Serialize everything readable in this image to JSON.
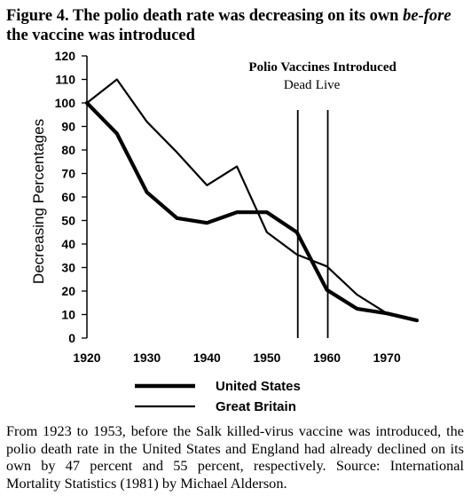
{
  "figure": {
    "title_part1": "Figure 4. The polio death rate was decreasing on its own ",
    "title_em": "be-fore",
    "title_part2": " the vaccine was introduced",
    "caption": "From 1923 to 1953, before the Salk killed-virus vaccine was introduced, the polio death rate in the United States and England had already declined on its own by 47 percent and 55 percent, respectively. Source: International Mortality Statistics (1981) by Michael Alderson."
  },
  "chart_data": {
    "type": "line",
    "title": "",
    "xlabel": "",
    "ylabel": "Decreasing Percentages",
    "xlim": [
      1920,
      1975
    ],
    "ylim": [
      0,
      120
    ],
    "x_ticks": [
      1920,
      1930,
      1940,
      1950,
      1960,
      1970
    ],
    "y_ticks": [
      0,
      10,
      20,
      30,
      40,
      50,
      60,
      70,
      80,
      90,
      100,
      110,
      120
    ],
    "grid": false,
    "legend_position": "bottom",
    "series": [
      {
        "name": "United States",
        "style": "thick",
        "x": [
          1920,
          1925,
          1930,
          1935,
          1940,
          1945,
          1950,
          1955,
          1960,
          1965,
          1970,
          1975
        ],
        "y": [
          100,
          87,
          62,
          51,
          49,
          53.5,
          53.5,
          45,
          20.5,
          12.5,
          10.5,
          7.5
        ]
      },
      {
        "name": "Great Britain",
        "style": "thin",
        "x": [
          1920,
          1925,
          1930,
          1935,
          1940,
          1945,
          1950,
          1955,
          1960,
          1965,
          1970,
          1975
        ],
        "y": [
          100,
          110,
          92,
          79,
          65,
          73,
          45,
          35.5,
          30.5,
          18.5,
          10.5,
          7.5
        ]
      }
    ],
    "annotations": {
      "heading": "Polio Vaccines Introduced",
      "lines": [
        {
          "label": "Dead",
          "x": 1955
        },
        {
          "label": "Live",
          "x": 1960
        }
      ]
    }
  }
}
